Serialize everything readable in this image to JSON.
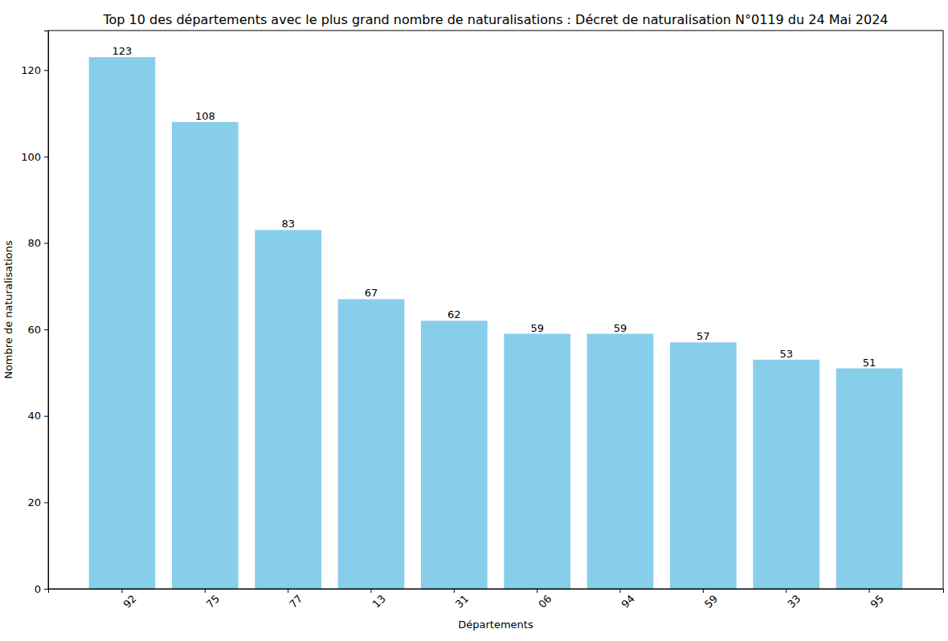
{
  "chart_data": {
    "type": "bar",
    "title": "Top 10 des départements avec le plus grand nombre de naturalisations : Décret de naturalisation N°0119 du 24 Mai 2024",
    "x_label": "Départements",
    "y_label": "Nombre de naturalisations",
    "categories": [
      "92",
      "75",
      "77",
      "13",
      "31",
      "06",
      "94",
      "59",
      "33",
      "95"
    ],
    "values": [
      123,
      108,
      83,
      67,
      62,
      59,
      59,
      57,
      53,
      51
    ],
    "color": "#87ceeb",
    "ylim": [
      0,
      129.15
    ],
    "yticks": [
      0,
      20,
      40,
      60,
      80,
      100,
      120
    ],
    "grid": false,
    "data_labels": true
  }
}
